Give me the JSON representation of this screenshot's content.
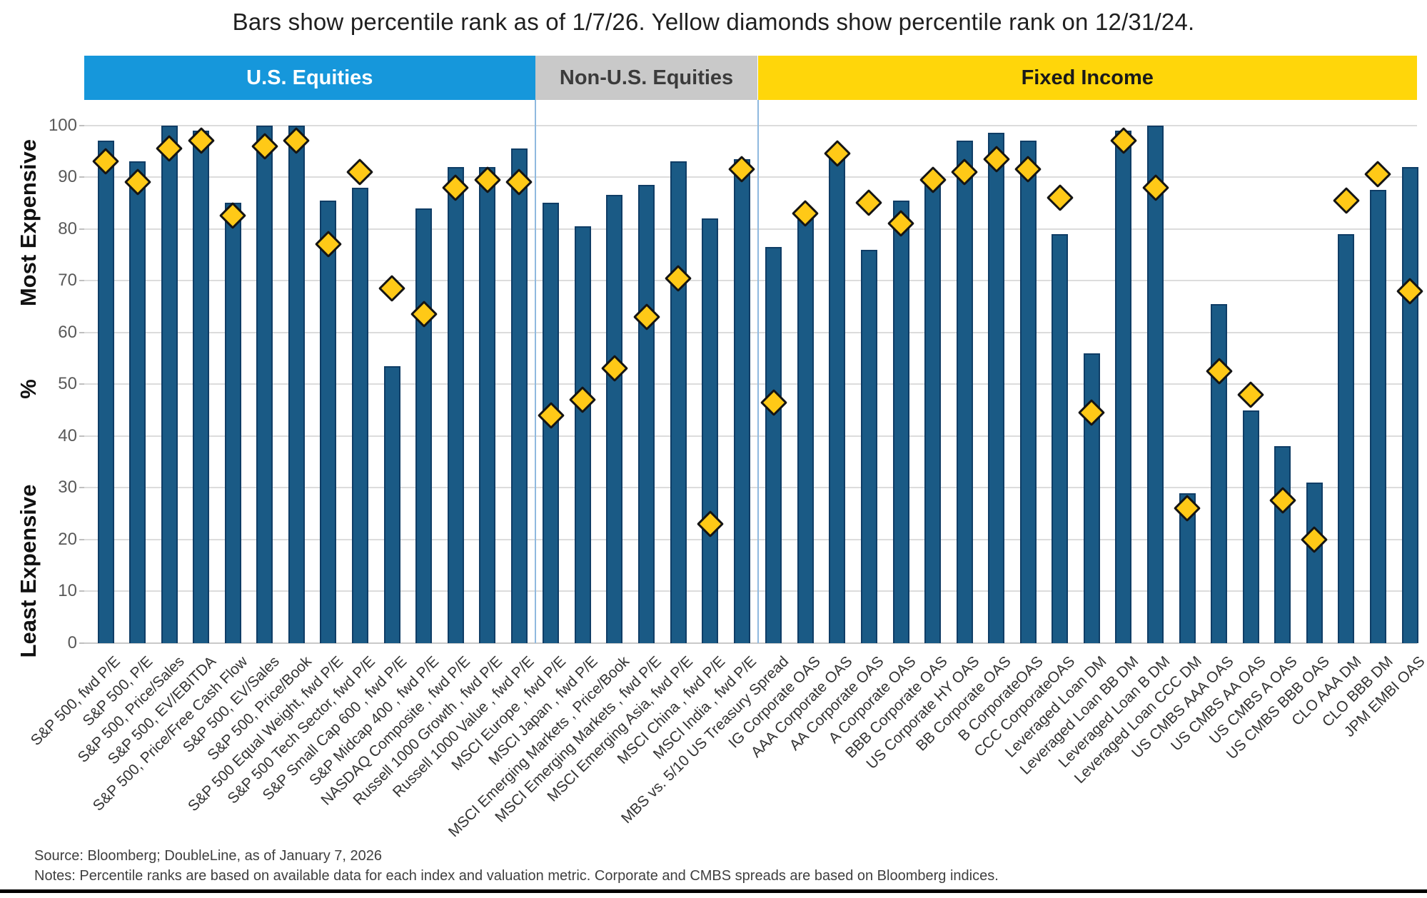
{
  "title": "Bars show percentile rank as of 1/7/26. Yellow diamonds show percentile rank on 12/31/24.",
  "axis": {
    "most_expensive": "Most Expensive",
    "percent": "%",
    "least_expensive": "Least Expensive"
  },
  "footer": {
    "source": "Source: Bloomberg; DoubleLine, as of January 7, 2026",
    "notes": "Notes: Percentile ranks are based on available data for each index and valuation metric. Corporate and CMBS spreads are based on Bloomberg indices."
  },
  "chart_data": {
    "type": "bar",
    "title": "Percentile rank of valuation metrics",
    "ylabel": "%",
    "ylim": [
      0,
      100
    ],
    "grid": true,
    "y_ticks": [
      0,
      10,
      20,
      30,
      40,
      50,
      60,
      70,
      80,
      90,
      100
    ],
    "bar_color": "#1a5a85",
    "diamond_color": "#ffc917",
    "legend": [
      {
        "name": "Percentile rank as of 1/7/26",
        "marker": "bar"
      },
      {
        "name": "Percentile rank on 12/31/24",
        "marker": "diamond"
      }
    ],
    "sections": [
      {
        "label": "U.S. Equities",
        "count": 14,
        "bg": "#1697db",
        "text": "#ffffff"
      },
      {
        "label": "Non-U.S. Equities",
        "count": 7,
        "bg": "#c9c9c9",
        "text": "#3b3b3b"
      },
      {
        "label": "Fixed Income",
        "count": 21,
        "bg": "#ffd60a",
        "text": "#1a1a1a"
      }
    ],
    "categories": [
      "S&P 500, fwd P/E",
      "S&P 500, P/E",
      "S&P 500, Price/Sales",
      "S&P 500, EV/EBITDA",
      "S&P 500, Price/Free Cash Flow",
      "S&P 500, EV/Sales",
      "S&P 500, Price/Book",
      "S&P 500 Equal Weight, fwd P/E",
      "S&P 500 Tech Sector, fwd P/E",
      "S&P Small Cap 600 , fwd P/E",
      "S&P Midcap 400 , fwd P/E",
      "NASDAQ Composite , fwd P/E",
      "Russell 1000 Growth , fwd P/E",
      "Russell 1000 Value , fwd P/E",
      "MSCI Europe , fwd P/E",
      "MSCI Japan , fwd P/E",
      "MSCI Emerging Markets , Price/Book",
      "MSCI Emerging Markets , fwd P/E",
      "MSCI Emerging Asia, fwd P/E",
      "MSCI China , fwd P/E",
      "MSCI India , fwd P/E",
      "MBS vs. 5/10 US Treasury Spread",
      "IG Corporate OAS",
      "AAA Corporate OAS",
      "AA Corporate OAS",
      "A Corporate OAS",
      "BBB Corporate OAS",
      "US Corporate HY OAS",
      "BB Corporate OAS",
      "B CorporateOAS",
      "CCC CorporateOAS",
      "Leveraged Loan DM",
      "Leveraged Loan BB DM",
      "Leveraged Loan B DM",
      "Leveraged Loan CCC DM",
      "US CMBS AAA OAS",
      "US CMBS AA OAS",
      "US CMBS A OAS",
      "US CMBS BBB OAS",
      "CLO AAA DM",
      "CLO BBB DM",
      "JPM EMBI OAS"
    ],
    "series": [
      {
        "name": "Bar: percentile rank as of 1/7/26",
        "values": [
          97,
          93,
          100,
          99,
          85,
          100,
          100,
          85.5,
          88,
          53.5,
          84,
          92,
          92,
          95.5,
          85,
          80.5,
          86.5,
          88.5,
          93,
          82,
          93.5,
          76.5,
          83.5,
          94,
          76,
          85.5,
          88.5,
          97,
          98.5,
          97,
          79,
          56,
          99,
          100,
          29,
          65.5,
          45,
          38,
          31,
          79,
          87.5,
          92
        ]
      },
      {
        "name": "Diamond: percentile rank on 12/31/24",
        "values": [
          93,
          89,
          95.5,
          97,
          82.5,
          96,
          97,
          77,
          91,
          68.5,
          63.5,
          88,
          89.5,
          89,
          44,
          47,
          53,
          63,
          70.5,
          23,
          91.5,
          46.5,
          83,
          94.5,
          85,
          81,
          89.5,
          91,
          93.5,
          91.5,
          86,
          44.5,
          97,
          88,
          26,
          52.5,
          48,
          27.5,
          20,
          85.5,
          90.5,
          68
        ]
      }
    ]
  }
}
